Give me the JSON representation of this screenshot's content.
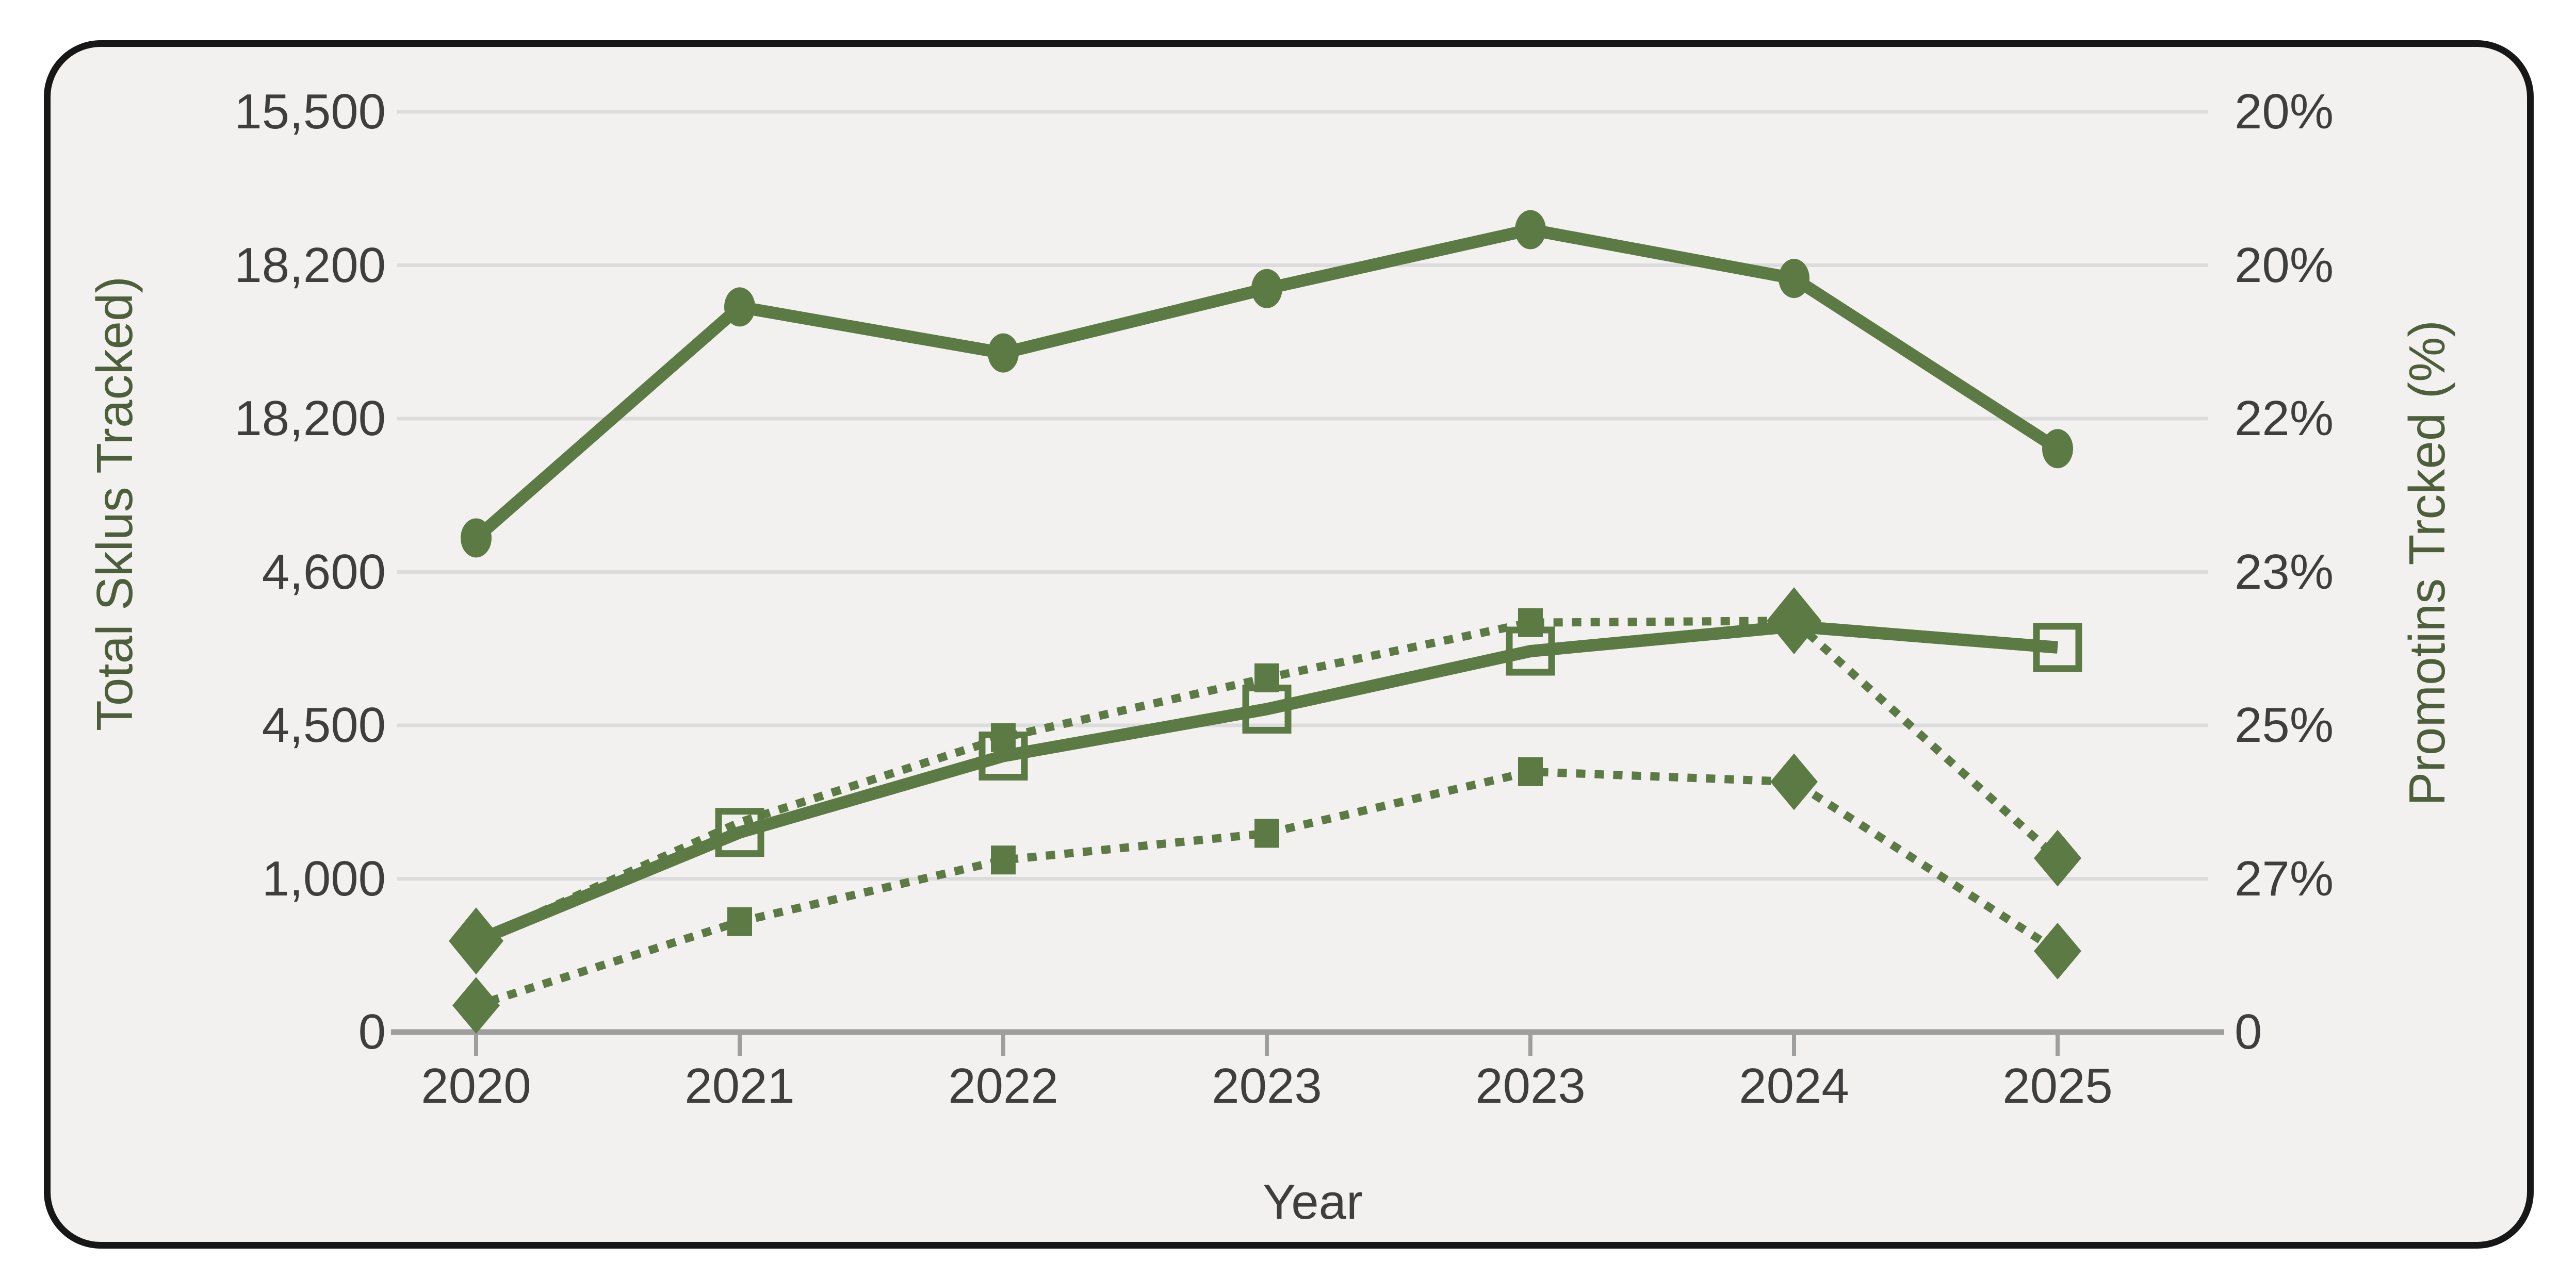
{
  "chart_data": {
    "type": "line",
    "title": "",
    "xlabel": "Year",
    "ylabel_left": "Total Sklus Tracked)",
    "ylabel_right": "Promotins Trcked (%)",
    "x_labels": [
      "2020",
      "2021",
      "2022",
      "2023",
      "2023",
      "2024",
      "2025"
    ],
    "y_left_tick_labels": [
      "15,500",
      "18,200",
      "18,200",
      "4,600",
      "4,500",
      "1,000",
      "0"
    ],
    "y_right_tick_labels": [
      "20%",
      "20%",
      "22%",
      "23%",
      "25%",
      "27%",
      "0"
    ],
    "grid": true,
    "legend": "none",
    "colors": {
      "series_green": "#5c7a43",
      "axis_title_green": "#4c5e3a",
      "tick_label_gray": "#3e3e3e",
      "gridline": "#dcdcdc",
      "axis_line": "#9e9e9e",
      "card_bg": "#f2f1ef",
      "card_border": "#171717",
      "page_bg": "#ffffff"
    },
    "series": [
      {
        "name": "total-skus-circle-line",
        "line": "solid",
        "marker_shape": "circle",
        "values_frac": [
          0.463,
          0.212,
          0.262,
          0.192,
          0.128,
          0.181,
          0.366
        ],
        "markers": [
          "circle",
          "circle",
          "circle",
          "circle",
          "circle",
          "circle",
          "circle"
        ]
      },
      {
        "name": "mid-solid-open-square-line",
        "line": "solid",
        "marker_shape": "open-square",
        "values_frac": [
          0.901,
          0.783,
          0.7,
          0.649,
          0.586,
          0.559,
          0.582
        ],
        "markers": [
          null,
          "open-square",
          "open-square",
          "open-square",
          "open-square",
          null,
          "open-square"
        ]
      },
      {
        "name": "upper-dotted-square-diamond-line",
        "line": "dotted",
        "marker_shape": "square",
        "values_frac": [
          0.901,
          0.772,
          0.68,
          0.615,
          0.555,
          0.553,
          0.811
        ],
        "markers": [
          "diamond-lg",
          null,
          "square",
          "square",
          "square",
          "diamond-lg",
          "diamond"
        ]
      },
      {
        "name": "lower-dotted-square-diamond-line",
        "line": "dotted",
        "marker_shape": "square",
        "values_frac": [
          0.971,
          0.88,
          0.813,
          0.784,
          0.717,
          0.728,
          0.912
        ],
        "markers": [
          "diamond",
          "square",
          "square",
          "square",
          "square",
          "diamond",
          "diamond"
        ]
      }
    ]
  }
}
